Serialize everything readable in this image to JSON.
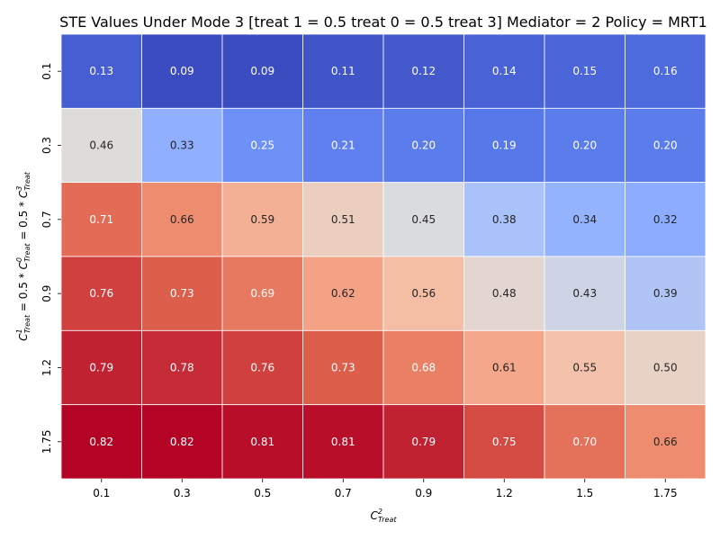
{
  "chart_data": {
    "type": "heatmap",
    "title": "STE Values Under Mode 3 [treat 1 = 0.5 treat 0 = 0.5 treat 3] Mediator = 2 Policy = MRT1",
    "xlabel": "C^2_Treat",
    "ylabel": "C^1_Treat = 0.5 * C^0_Treat = 0.5 * C^3_Treat",
    "x_categories": [
      "0.1",
      "0.3",
      "0.5",
      "0.7",
      "0.9",
      "1.2",
      "1.5",
      "1.75"
    ],
    "y_categories": [
      "0.1",
      "0.3",
      "0.7",
      "0.9",
      "1.2",
      "1.75"
    ],
    "values": [
      [
        0.13,
        0.09,
        0.09,
        0.11,
        0.12,
        0.14,
        0.15,
        0.16
      ],
      [
        0.46,
        0.33,
        0.25,
        0.21,
        0.2,
        0.19,
        0.2,
        0.2
      ],
      [
        0.71,
        0.66,
        0.59,
        0.51,
        0.45,
        0.38,
        0.34,
        0.32
      ],
      [
        0.76,
        0.73,
        0.69,
        0.62,
        0.56,
        0.48,
        0.43,
        0.39
      ],
      [
        0.79,
        0.78,
        0.76,
        0.73,
        0.68,
        0.61,
        0.55,
        0.5
      ],
      [
        0.82,
        0.82,
        0.81,
        0.81,
        0.79,
        0.75,
        0.7,
        0.66
      ]
    ],
    "colormap": "coolwarm",
    "vmin": 0.09,
    "vmax": 0.82,
    "value_format": "2 decimals",
    "grid": false,
    "legend": "none"
  }
}
